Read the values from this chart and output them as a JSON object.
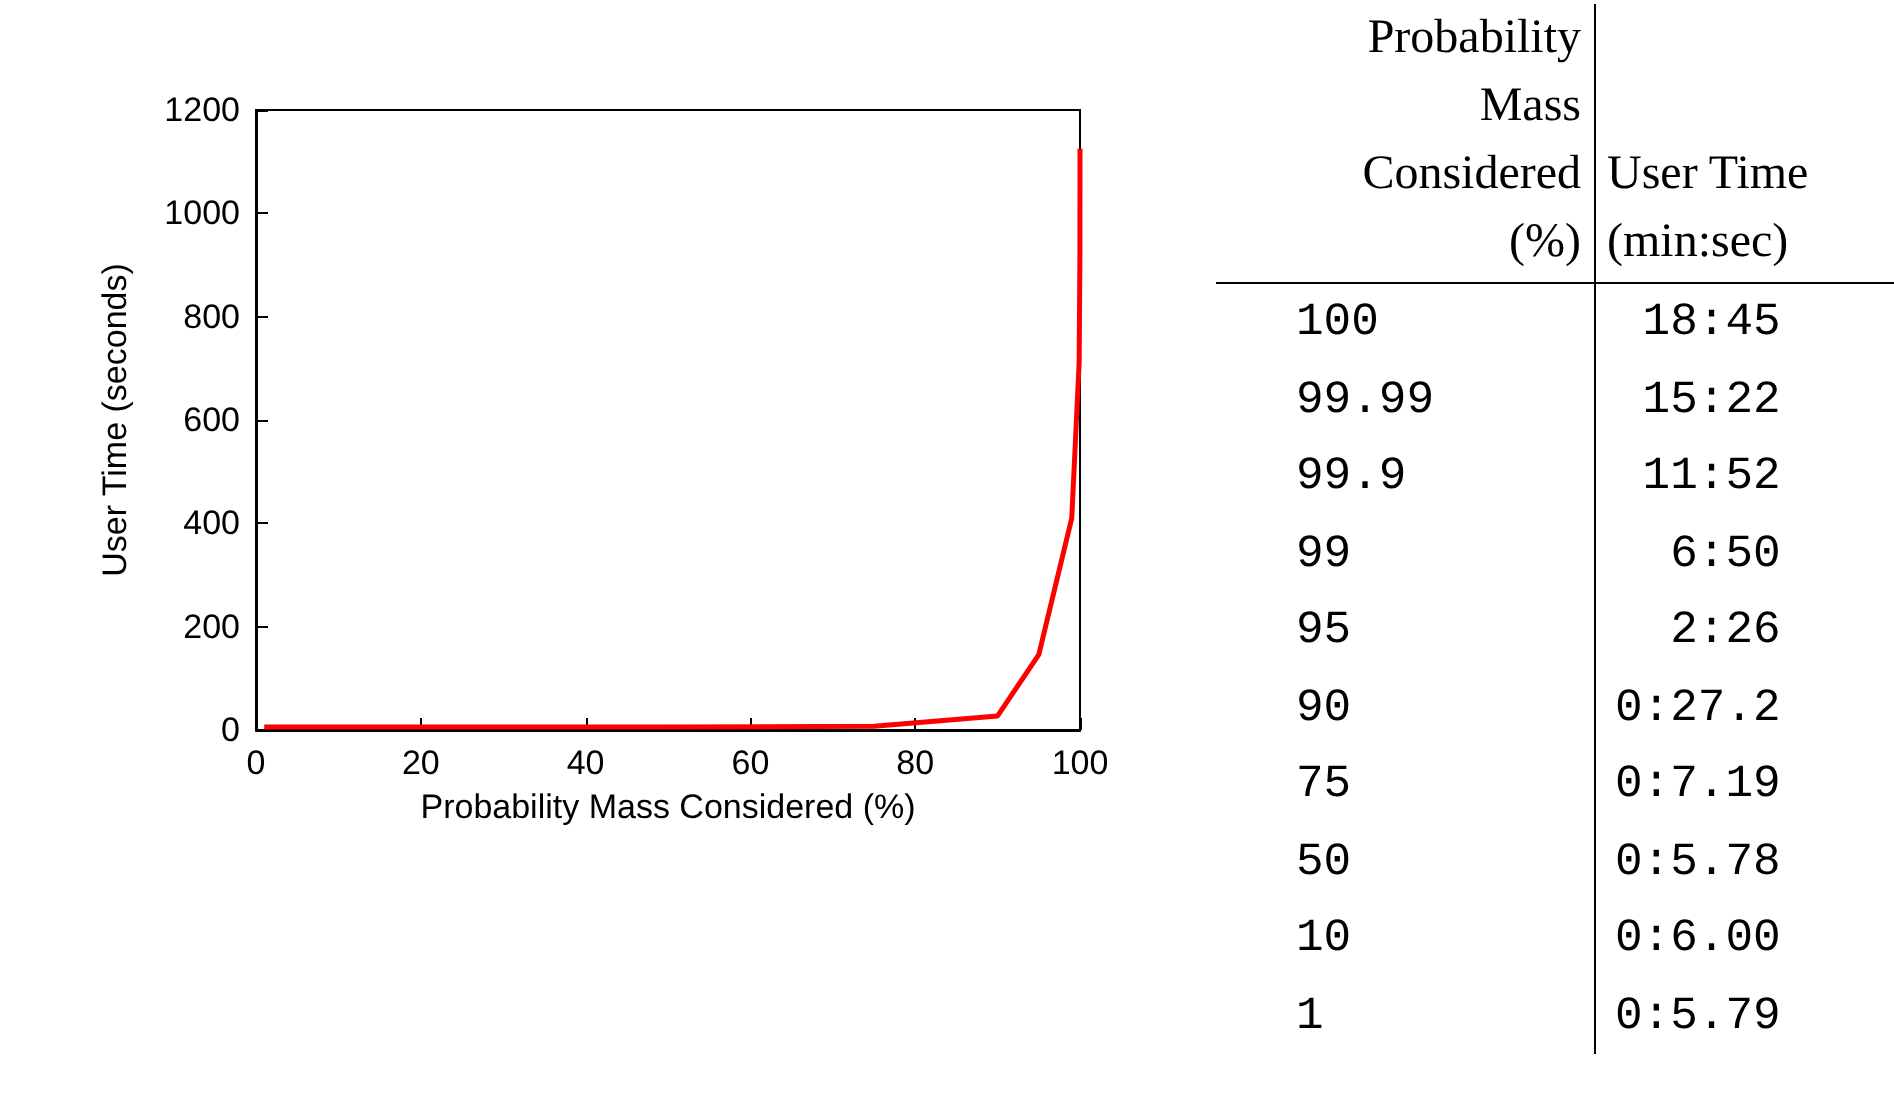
{
  "chart_data": [
    {
      "type": "line",
      "xlabel": "Probability Mass Considered (%)",
      "ylabel": "User Time (seconds)",
      "x": [
        100,
        99.99,
        99.9,
        99,
        95,
        90,
        75,
        50,
        10,
        1
      ],
      "series": [
        {
          "color": "#ff0000",
          "values": [
            1125,
            922,
            712,
            410,
            146,
            27.2,
            7.19,
            5.78,
            6.0,
            5.79
          ]
        }
      ],
      "xlim": [
        0,
        100
      ],
      "xticks": [
        0,
        20,
        40,
        60,
        80,
        100
      ],
      "ylim": [
        0,
        1200
      ],
      "yticks": [
        0,
        200,
        400,
        600,
        800,
        1000,
        1200
      ],
      "grid": false,
      "marker": "none",
      "line_style": "solid"
    },
    {
      "type": "other",
      "annotations": [
        "Probability Mass Considered (%)",
        "User Time (min:sec)",
        "100",
        "18:45",
        "99.99",
        "15:22",
        "99.9",
        "11:52",
        "99",
        "6:50",
        "95",
        "2:26",
        "90",
        "0:27.2",
        "75",
        "0:7.19",
        "50",
        "0:5.78",
        "10",
        "0:6.00",
        "1",
        "0:5.79"
      ]
    }
  ]
}
